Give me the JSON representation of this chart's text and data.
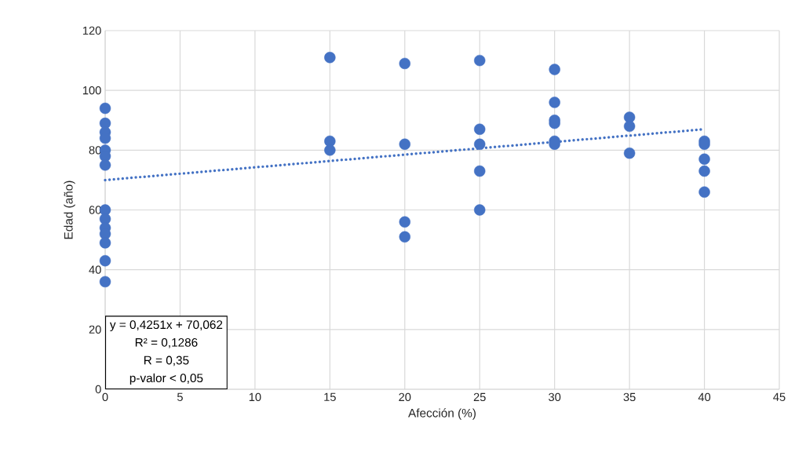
{
  "chart_data": {
    "type": "scatter",
    "xlabel": "Afección (%)",
    "ylabel": "Edad (año)",
    "xlim": [
      0,
      45
    ],
    "ylim": [
      0,
      120
    ],
    "xticks": [
      0,
      5,
      10,
      15,
      20,
      25,
      30,
      35,
      40,
      45
    ],
    "yticks": [
      0,
      20,
      40,
      60,
      80,
      100,
      120
    ],
    "grid": true,
    "marker": "circle",
    "series": [
      {
        "color": "#4472c4",
        "x": [
          0,
          0,
          0,
          0,
          0,
          0,
          0,
          0,
          0,
          0,
          0,
          0,
          0,
          0,
          15,
          15,
          15,
          20,
          20,
          20,
          20,
          25,
          25,
          25,
          25,
          25,
          30,
          30,
          30,
          30,
          30,
          30,
          35,
          35,
          35,
          40,
          40,
          40,
          40,
          40
        ],
        "values": [
          94,
          89,
          86,
          84,
          80,
          78,
          75,
          60,
          57,
          54,
          52,
          49,
          43,
          36,
          111,
          83,
          80,
          109,
          82,
          56,
          51,
          110,
          87,
          82,
          73,
          60,
          107,
          96,
          90,
          89,
          83,
          82,
          91,
          88,
          79,
          83,
          82,
          77,
          73,
          66
        ]
      },
      {
        "type": "line",
        "color": "#4472c4",
        "line_style": "dotted",
        "marker": "none",
        "x": [
          0,
          40
        ],
        "values": [
          70,
          87
        ]
      }
    ],
    "annotations": [
      "y = 0,4251x + 70,062",
      "R² = 0,1286",
      "R = 0,35",
      "p-valor < 0,05"
    ]
  }
}
